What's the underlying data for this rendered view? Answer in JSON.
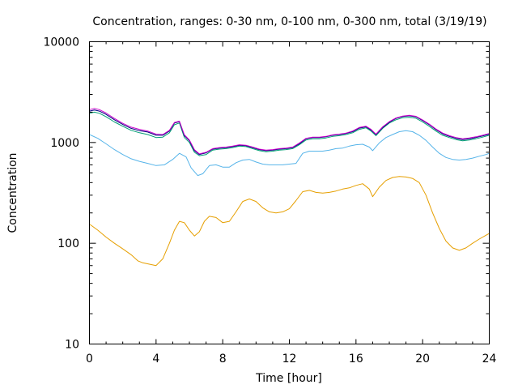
{
  "chart_data": {
    "type": "line",
    "title": "Concentration, ranges: 0-30 nm, 0-100 nm, 0-300 nm, total (3/19/19)",
    "xlabel": "Time [hour]",
    "ylabel": "Concentration",
    "xlim": [
      0,
      24
    ],
    "ylim": [
      10,
      10000
    ],
    "yscale": "log",
    "grid": false,
    "legend": "none",
    "xticks": [
      0,
      4,
      8,
      12,
      16,
      20,
      24
    ],
    "xtick_labels": [
      "0",
      "4",
      "8",
      "12",
      "16",
      "20",
      "24"
    ],
    "yticks": [
      10,
      100,
      1000,
      10000
    ],
    "ytick_labels": [
      "10",
      "100",
      "1000",
      "10000"
    ],
    "series": [
      {
        "color": "#e69f00",
        "x": [
          0,
          0.5,
          1,
          1.5,
          2,
          2.5,
          2.9,
          3.2,
          3.6,
          4,
          4.4,
          4.8,
          5.1,
          5.4,
          5.7,
          6,
          6.3,
          6.6,
          6.9,
          7.2,
          7.6,
          8,
          8.4,
          8.8,
          9.2,
          9.6,
          10,
          10.4,
          10.8,
          11.2,
          11.6,
          12,
          12.4,
          12.8,
          13.2,
          13.6,
          14,
          14.4,
          14.8,
          15.2,
          15.6,
          16,
          16.4,
          16.8,
          17,
          17.4,
          17.8,
          18.2,
          18.6,
          19,
          19.4,
          19.8,
          20.2,
          20.6,
          21,
          21.4,
          21.8,
          22.2,
          22.6,
          23,
          23.4,
          23.8,
          24
        ],
        "y": [
          155,
          135,
          115,
          100,
          88,
          77,
          67,
          64,
          62,
          60,
          70,
          100,
          135,
          165,
          160,
          135,
          118,
          130,
          165,
          185,
          180,
          160,
          165,
          205,
          260,
          275,
          260,
          225,
          205,
          200,
          205,
          220,
          265,
          325,
          335,
          320,
          315,
          320,
          330,
          345,
          355,
          375,
          390,
          345,
          290,
          360,
          420,
          450,
          460,
          455,
          440,
          400,
          300,
          200,
          140,
          105,
          90,
          85,
          90,
          100,
          110,
          120,
          125
        ]
      },
      {
        "color": "#56b4e9",
        "x": [
          0,
          0.5,
          1,
          1.5,
          2,
          2.5,
          3,
          3.5,
          4,
          4.5,
          5,
          5.4,
          5.8,
          6.1,
          6.5,
          6.8,
          7.2,
          7.6,
          8,
          8.4,
          8.8,
          9.2,
          9.6,
          10,
          10.4,
          10.8,
          11.2,
          11.6,
          12,
          12.4,
          12.8,
          13.2,
          13.6,
          14,
          14.4,
          14.8,
          15.2,
          15.6,
          16,
          16.4,
          16.8,
          17,
          17.4,
          17.8,
          18.2,
          18.6,
          19,
          19.4,
          19.8,
          20.2,
          20.6,
          21,
          21.4,
          21.8,
          22.2,
          22.6,
          23,
          23.4,
          23.8,
          24
        ],
        "y": [
          1200,
          1100,
          970,
          850,
          760,
          690,
          650,
          620,
          590,
          600,
          680,
          780,
          720,
          560,
          470,
          490,
          590,
          600,
          570,
          570,
          630,
          670,
          680,
          640,
          610,
          600,
          600,
          600,
          610,
          620,
          780,
          820,
          820,
          820,
          840,
          870,
          880,
          920,
          950,
          960,
          900,
          830,
          990,
          1120,
          1200,
          1280,
          1310,
          1280,
          1180,
          1050,
          900,
          780,
          710,
          680,
          670,
          680,
          700,
          730,
          760,
          780
        ]
      },
      {
        "color": "#009e73",
        "x": [
          0,
          0.3,
          0.6,
          1,
          1.5,
          2,
          2.5,
          3,
          3.5,
          4,
          4.4,
          4.8,
          5.1,
          5.4,
          5.7,
          6,
          6.3,
          6.6,
          7,
          7.4,
          7.8,
          8.2,
          8.6,
          9,
          9.4,
          9.8,
          10.2,
          10.6,
          11,
          11.4,
          11.8,
          12.2,
          12.6,
          13,
          13.4,
          13.8,
          14.2,
          14.6,
          15,
          15.4,
          15.8,
          16.2,
          16.6,
          16.9,
          17.2,
          17.6,
          18,
          18.4,
          18.8,
          19.2,
          19.6,
          20,
          20.4,
          20.8,
          21.2,
          21.6,
          22,
          22.4,
          22.8,
          23.2,
          23.6,
          24
        ],
        "y": [
          1950,
          2000,
          1950,
          1800,
          1600,
          1450,
          1320,
          1250,
          1200,
          1120,
          1130,
          1250,
          1500,
          1560,
          1120,
          1000,
          800,
          740,
          760,
          840,
          860,
          870,
          890,
          920,
          910,
          870,
          830,
          810,
          820,
          840,
          850,
          870,
          950,
          1060,
          1090,
          1090,
          1110,
          1150,
          1170,
          1200,
          1250,
          1350,
          1400,
          1300,
          1170,
          1380,
          1560,
          1680,
          1760,
          1780,
          1740,
          1600,
          1450,
          1300,
          1180,
          1120,
          1070,
          1040,
          1060,
          1090,
          1130,
          1180
        ]
      },
      {
        "color": "#000080",
        "x": [
          0,
          0.3,
          0.6,
          1,
          1.5,
          2,
          2.5,
          3,
          3.5,
          4,
          4.4,
          4.8,
          5.1,
          5.4,
          5.7,
          6,
          6.3,
          6.6,
          7,
          7.4,
          7.8,
          8.2,
          8.6,
          9,
          9.4,
          9.8,
          10.2,
          10.6,
          11,
          11.4,
          11.8,
          12.2,
          12.6,
          13,
          13.4,
          13.8,
          14.2,
          14.6,
          15,
          15.4,
          15.8,
          16.2,
          16.6,
          16.9,
          17.2,
          17.6,
          18,
          18.4,
          18.8,
          19.2,
          19.6,
          20,
          20.4,
          20.8,
          21.2,
          21.6,
          22,
          22.4,
          22.8,
          23.2,
          23.6,
          24
        ],
        "y": [
          2050,
          2100,
          2050,
          1900,
          1680,
          1510,
          1380,
          1310,
          1270,
          1180,
          1180,
          1300,
          1560,
          1610,
          1170,
          1040,
          830,
          760,
          790,
          860,
          880,
          890,
          910,
          940,
          930,
          890,
          850,
          830,
          840,
          860,
          870,
          890,
          970,
          1090,
          1120,
          1120,
          1140,
          1180,
          1200,
          1230,
          1280,
          1390,
          1430,
          1330,
          1200,
          1410,
          1590,
          1730,
          1810,
          1840,
          1800,
          1650,
          1500,
          1340,
          1220,
          1150,
          1100,
          1070,
          1090,
          1120,
          1160,
          1210
        ]
      },
      {
        "color": "#cc00cc",
        "x": [
          0,
          0.3,
          0.6,
          1,
          1.5,
          2,
          2.5,
          3,
          3.5,
          4,
          4.4,
          4.8,
          5.1,
          5.4,
          5.7,
          6,
          6.3,
          6.6,
          7,
          7.4,
          7.8,
          8.2,
          8.6,
          9,
          9.4,
          9.8,
          10.2,
          10.6,
          11,
          11.4,
          11.8,
          12.2,
          12.6,
          13,
          13.4,
          13.8,
          14.2,
          14.6,
          15,
          15.4,
          15.8,
          16.2,
          16.6,
          16.9,
          17.2,
          17.6,
          18,
          18.4,
          18.8,
          19.2,
          19.6,
          20,
          20.4,
          20.8,
          21.2,
          21.6,
          22,
          22.4,
          22.8,
          23.2,
          23.6,
          24
        ],
        "y": [
          2120,
          2180,
          2120,
          1960,
          1730,
          1550,
          1420,
          1350,
          1300,
          1210,
          1200,
          1320,
          1580,
          1630,
          1190,
          1060,
          850,
          770,
          800,
          870,
          890,
          900,
          920,
          950,
          940,
          900,
          860,
          840,
          850,
          870,
          880,
          900,
          990,
          1100,
          1130,
          1130,
          1150,
          1190,
          1210,
          1240,
          1300,
          1410,
          1450,
          1350,
          1210,
          1430,
          1610,
          1750,
          1830,
          1860,
          1820,
          1670,
          1520,
          1360,
          1240,
          1170,
          1120,
          1090,
          1110,
          1140,
          1180,
          1230
        ]
      }
    ]
  }
}
